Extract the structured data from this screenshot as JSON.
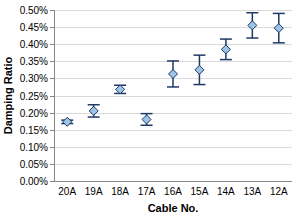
{
  "chart_data": {
    "type": "scatter",
    "x_label": "Cable No.",
    "y_label": "Damping Ratio",
    "categories": [
      "20A",
      "19A",
      "18A",
      "17A",
      "16A",
      "15A",
      "14A",
      "13A",
      "12A"
    ],
    "values": [
      0.173,
      0.205,
      0.268,
      0.18,
      0.313,
      0.325,
      0.385,
      0.455,
      0.447
    ],
    "errors": [
      0.005,
      0.018,
      0.012,
      0.017,
      0.038,
      0.043,
      0.03,
      0.037,
      0.043
    ],
    "color": "#9dc3e6",
    "marker": "diamond",
    "ylim": [
      0,
      0.5
    ],
    "yticks": [
      {
        "value": 0,
        "label": "0.00%"
      },
      {
        "value": 0.05,
        "label": "0.05%"
      },
      {
        "value": 0.1,
        "label": "0.10%"
      },
      {
        "value": 0.15,
        "label": "0.15%"
      },
      {
        "value": 0.2,
        "label": "0.20%"
      },
      {
        "value": 0.25,
        "label": "0.25%"
      },
      {
        "value": 0.3,
        "label": "0.30%"
      },
      {
        "value": 0.35,
        "label": "0.35%"
      },
      {
        "value": 0.4,
        "label": "0.40%"
      },
      {
        "value": 0.45,
        "label": "0.45%"
      },
      {
        "value": 0.5,
        "label": "0.50%"
      }
    ],
    "grid": true
  }
}
